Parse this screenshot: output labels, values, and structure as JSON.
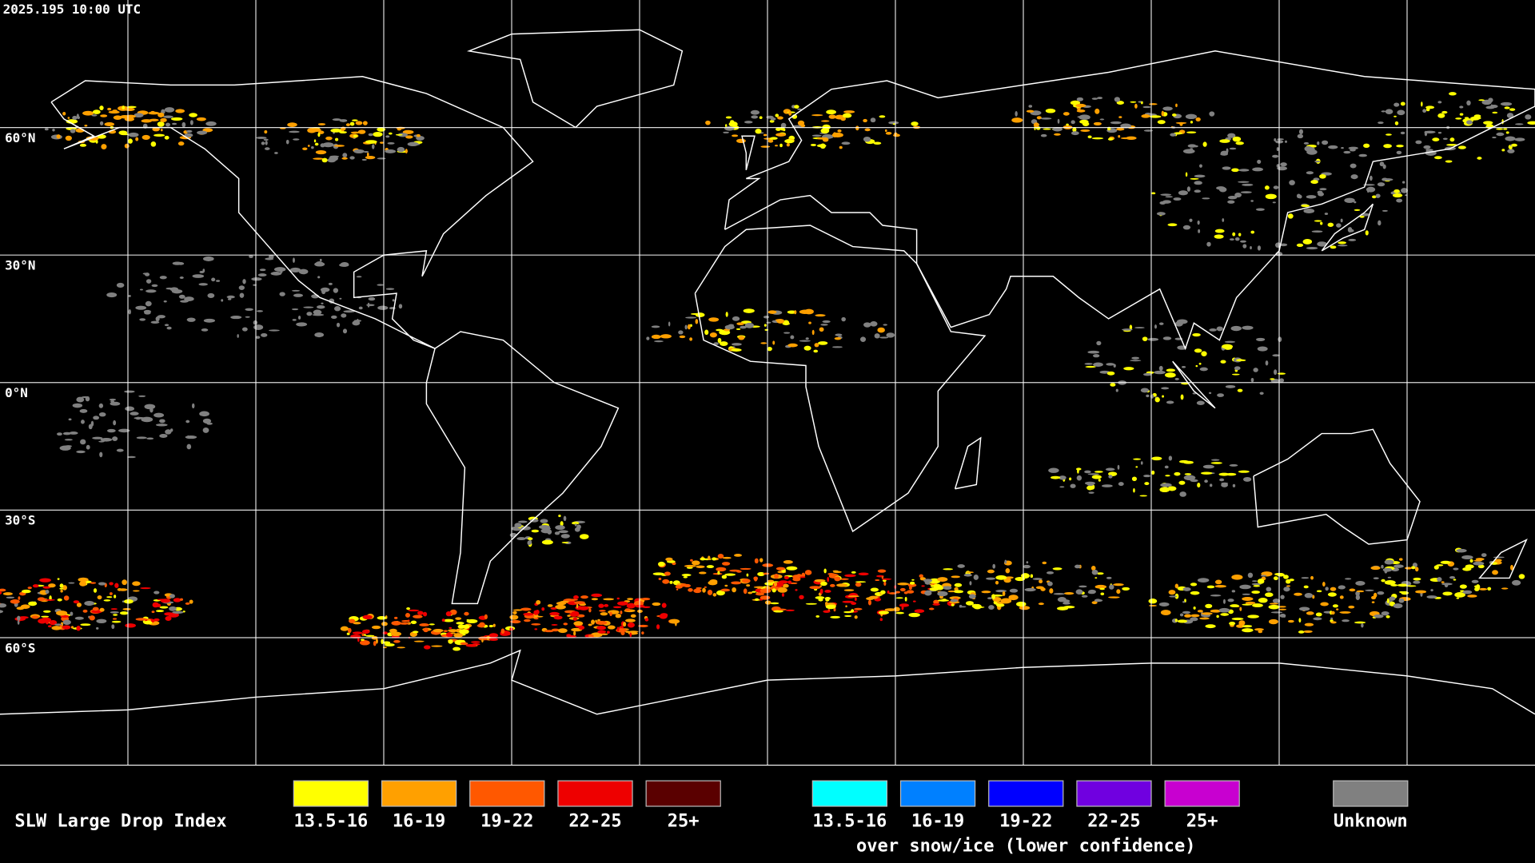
{
  "timestamp": "2025.195 10:00 UTC",
  "grid_labels": [
    "60°N",
    "30°N",
    "0°N",
    "30°S",
    "60°S"
  ],
  "legend": {
    "title": "SLW Large Drop Index",
    "groups": [
      {
        "items": [
          {
            "label": "13.5-16",
            "color": "#ffff00"
          },
          {
            "label": "16-19",
            "color": "#ffa000"
          },
          {
            "label": "19-22",
            "color": "#ff5800"
          },
          {
            "label": "22-25",
            "color": "#ee0000"
          },
          {
            "label": "25+",
            "color": "#5a0000"
          }
        ]
      },
      {
        "items": [
          {
            "label": "13.5-16",
            "color": "#00ffff"
          },
          {
            "label": "16-19",
            "color": "#0080ff"
          },
          {
            "label": "19-22",
            "color": "#0000ff"
          },
          {
            "label": "22-25",
            "color": "#7000e0"
          },
          {
            "label": "25+",
            "color": "#c800d0"
          }
        ],
        "caption": "over snow/ice (lower confidence)"
      }
    ],
    "unknown": {
      "label": "Unknown",
      "color": "#808080"
    }
  }
}
